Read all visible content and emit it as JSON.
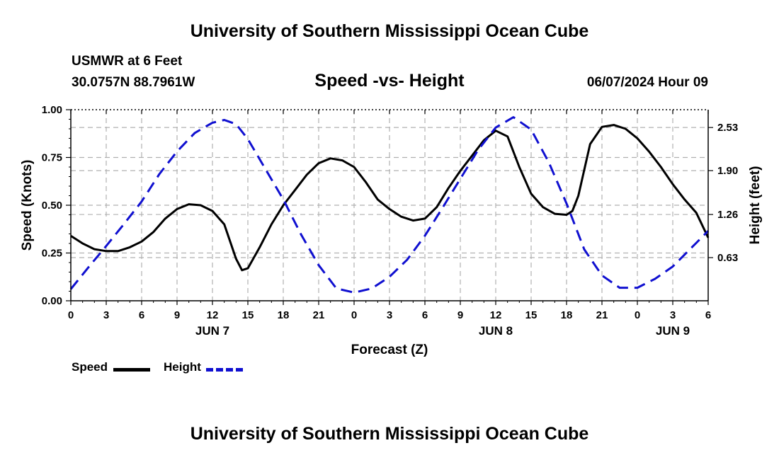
{
  "titles": {
    "top": "University of Southern Mississippi Ocean Cube",
    "bottom": "University of Southern Mississippi Ocean Cube"
  },
  "header": {
    "station": "USMWR at 6 Feet",
    "coords": "30.0757N  88.7961W",
    "subtitle": "Speed -vs- Height",
    "date": "06/07/2024 Hour 09"
  },
  "legend": {
    "speed": "Speed",
    "height": "Height"
  },
  "colors": {
    "speed": "#000000",
    "height": "#1010d0",
    "grid": "#b0b0b0"
  },
  "chart_data": {
    "type": "line",
    "title": "Speed -vs- Height",
    "xlabel": "Forecast (Z)",
    "ylabel": "Speed (Knots)",
    "ylabel_right": "Height (feet)",
    "x_range": [
      0,
      54
    ],
    "x_ticks": [
      0,
      3,
      6,
      9,
      12,
      15,
      18,
      21,
      24,
      27,
      30,
      33,
      36,
      39,
      42,
      45,
      48,
      51,
      54
    ],
    "x_tick_labels": [
      "0",
      "3",
      "6",
      "9",
      "12",
      "15",
      "18",
      "21",
      "0",
      "3",
      "6",
      "9",
      "12",
      "15",
      "18",
      "21",
      "0",
      "3",
      "6"
    ],
    "date_labels": [
      {
        "x": 12,
        "label": "JUN 7"
      },
      {
        "x": 36,
        "label": "JUN 8"
      },
      {
        "x": 51,
        "label": "JUN 9"
      }
    ],
    "ylim": [
      0,
      1
    ],
    "y_ticks": [
      0,
      0.25,
      0.5,
      0.75,
      1.0
    ],
    "y_tick_labels": [
      "0.00",
      "0.25",
      "0.50",
      "0.75",
      "1.00"
    ],
    "y2lim": [
      0.0,
      2.79
    ],
    "y2_ticks": [
      0.63,
      1.26,
      1.9,
      2.53
    ],
    "y2_tick_labels": [
      "0.63",
      "1.26",
      "1.90",
      "2.53"
    ],
    "series": [
      {
        "name": "Speed",
        "axis": "left",
        "style": "solid",
        "x": [
          0,
          1,
          2,
          3,
          4,
          5,
          6,
          7,
          8,
          9,
          10,
          11,
          12,
          13,
          14,
          14.5,
          15,
          16,
          17,
          18,
          19,
          20,
          21,
          22,
          23,
          24,
          25,
          26,
          27,
          28,
          29,
          30,
          31,
          32,
          33,
          34,
          35,
          36,
          37,
          38,
          39,
          40,
          41,
          42,
          42.5,
          43,
          44,
          45,
          46,
          47,
          48,
          49,
          50,
          51,
          52,
          53,
          54
        ],
        "values": [
          0.34,
          0.3,
          0.27,
          0.26,
          0.26,
          0.28,
          0.31,
          0.36,
          0.43,
          0.48,
          0.505,
          0.5,
          0.47,
          0.4,
          0.22,
          0.16,
          0.17,
          0.28,
          0.4,
          0.5,
          0.58,
          0.66,
          0.72,
          0.745,
          0.735,
          0.7,
          0.62,
          0.53,
          0.48,
          0.44,
          0.42,
          0.43,
          0.49,
          0.59,
          0.68,
          0.76,
          0.84,
          0.89,
          0.86,
          0.7,
          0.56,
          0.49,
          0.455,
          0.45,
          0.47,
          0.55,
          0.82,
          0.91,
          0.92,
          0.9,
          0.85,
          0.78,
          0.7,
          0.61,
          0.53,
          0.46,
          0.33
        ]
      },
      {
        "name": "Height",
        "axis": "right",
        "style": "dashed",
        "x": [
          0,
          1.5,
          3,
          4.5,
          6,
          7.5,
          9,
          10.5,
          12,
          13,
          14,
          15,
          16.5,
          18,
          19.5,
          21,
          22.5,
          24,
          25.5,
          27,
          28.5,
          30,
          31.5,
          33,
          34.5,
          36,
          37.5,
          39,
          40.5,
          42,
          43.5,
          45,
          46.5,
          48,
          49.5,
          51,
          52.5,
          54
        ],
        "values": [
          0.17,
          0.49,
          0.8,
          1.12,
          1.45,
          1.85,
          2.18,
          2.45,
          2.6,
          2.64,
          2.58,
          2.36,
          1.92,
          1.48,
          0.97,
          0.52,
          0.18,
          0.12,
          0.18,
          0.35,
          0.6,
          0.95,
          1.36,
          1.78,
          2.2,
          2.53,
          2.68,
          2.5,
          2.02,
          1.42,
          0.75,
          0.37,
          0.19,
          0.19,
          0.32,
          0.5,
          0.76,
          1.02
        ]
      }
    ]
  }
}
